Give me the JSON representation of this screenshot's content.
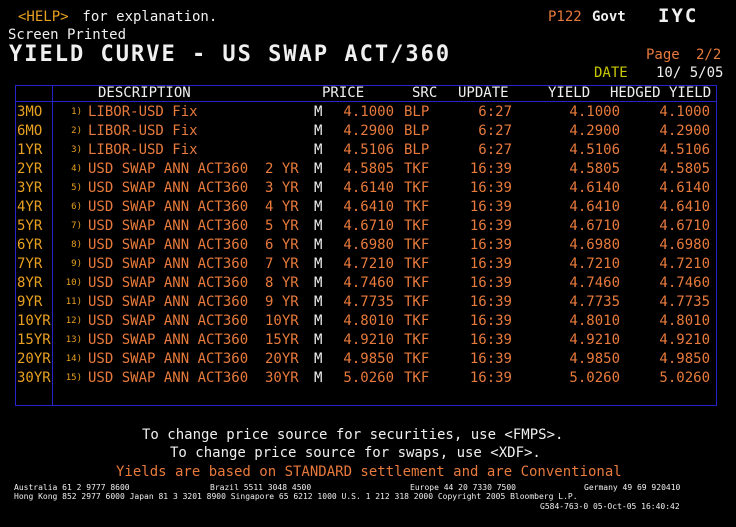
{
  "top": {
    "help_key": "<HELP>",
    "help_text": " for explanation.",
    "page_code": "P122",
    "market": "Govt",
    "function": "IYC",
    "status": "Screen Printed",
    "title": "YIELD CURVE - US SWAP ACT/360",
    "page_label": "Page",
    "page_value": "2/2",
    "date_label": "DATE",
    "date_value": "10/ 5/05"
  },
  "columns": {
    "description": "DESCRIPTION",
    "price": "PRICE",
    "src": "SRC",
    "update": "UPDATE",
    "yield": "YIELD",
    "hedged_yield": "HEDGED YIELD"
  },
  "rows": [
    {
      "tenor": "3MO",
      "num": "1)",
      "desc": "LIBOR-USD Fix",
      "ind": "M",
      "price": "4.1000",
      "src": "BLP",
      "update": "6:27",
      "yield": "4.1000",
      "hedged": "4.1000"
    },
    {
      "tenor": "6MO",
      "num": "2)",
      "desc": "LIBOR-USD Fix",
      "ind": "M",
      "price": "4.2900",
      "src": "BLP",
      "update": "6:27",
      "yield": "4.2900",
      "hedged": "4.2900"
    },
    {
      "tenor": "1YR",
      "num": "3)",
      "desc": "LIBOR-USD Fix",
      "ind": "M",
      "price": "4.5106",
      "src": "BLP",
      "update": "6:27",
      "yield": "4.5106",
      "hedged": "4.5106"
    },
    {
      "tenor": "2YR",
      "num": "4)",
      "desc": "USD SWAP ANN ACT360  2 YR",
      "ind": "M",
      "price": "4.5805",
      "src": "TKF",
      "update": "16:39",
      "yield": "4.5805",
      "hedged": "4.5805"
    },
    {
      "tenor": "3YR",
      "num": "5)",
      "desc": "USD SWAP ANN ACT360  3 YR",
      "ind": "M",
      "price": "4.6140",
      "src": "TKF",
      "update": "16:39",
      "yield": "4.6140",
      "hedged": "4.6140"
    },
    {
      "tenor": "4YR",
      "num": "6)",
      "desc": "USD SWAP ANN ACT360  4 YR",
      "ind": "M",
      "price": "4.6410",
      "src": "TKF",
      "update": "16:39",
      "yield": "4.6410",
      "hedged": "4.6410"
    },
    {
      "tenor": "5YR",
      "num": "7)",
      "desc": "USD SWAP ANN ACT360  5 YR",
      "ind": "M",
      "price": "4.6710",
      "src": "TKF",
      "update": "16:39",
      "yield": "4.6710",
      "hedged": "4.6710"
    },
    {
      "tenor": "6YR",
      "num": "8)",
      "desc": "USD SWAP ANN ACT360  6 YR",
      "ind": "M",
      "price": "4.6980",
      "src": "TKF",
      "update": "16:39",
      "yield": "4.6980",
      "hedged": "4.6980"
    },
    {
      "tenor": "7YR",
      "num": "9)",
      "desc": "USD SWAP ANN ACT360  7 YR",
      "ind": "M",
      "price": "4.7210",
      "src": "TKF",
      "update": "16:39",
      "yield": "4.7210",
      "hedged": "4.7210"
    },
    {
      "tenor": "8YR",
      "num": "10)",
      "desc": "USD SWAP ANN ACT360  8 YR",
      "ind": "M",
      "price": "4.7460",
      "src": "TKF",
      "update": "16:39",
      "yield": "4.7460",
      "hedged": "4.7460"
    },
    {
      "tenor": "9YR",
      "num": "11)",
      "desc": "USD SWAP ANN ACT360  9 YR",
      "ind": "M",
      "price": "4.7735",
      "src": "TKF",
      "update": "16:39",
      "yield": "4.7735",
      "hedged": "4.7735"
    },
    {
      "tenor": "10YR",
      "num": "12)",
      "desc": "USD SWAP ANN ACT360  10YR",
      "ind": "M",
      "price": "4.8010",
      "src": "TKF",
      "update": "16:39",
      "yield": "4.8010",
      "hedged": "4.8010"
    },
    {
      "tenor": "15YR",
      "num": "13)",
      "desc": "USD SWAP ANN ACT360  15YR",
      "ind": "M",
      "price": "4.9210",
      "src": "TKF",
      "update": "16:39",
      "yield": "4.9210",
      "hedged": "4.9210"
    },
    {
      "tenor": "20YR",
      "num": "14)",
      "desc": "USD SWAP ANN ACT360  20YR",
      "ind": "M",
      "price": "4.9850",
      "src": "TKF",
      "update": "16:39",
      "yield": "4.9850",
      "hedged": "4.9850"
    },
    {
      "tenor": "30YR",
      "num": "15)",
      "desc": "USD SWAP ANN ACT360  30YR",
      "ind": "M",
      "price": "5.0260",
      "src": "TKF",
      "update": "16:39",
      "yield": "5.0260",
      "hedged": "5.0260"
    }
  ],
  "notes": {
    "line1": "To change price source for securities, use <FMPS>.",
    "line2": "To change price source for swaps, use <XDF>.",
    "line3": "Yields are based on STANDARD settlement and are Conventional"
  },
  "footer": {
    "contacts1a": "Australia 61 2 9777 8600",
    "contacts1b": "Brazil 5511 3048 4500",
    "contacts1c": "Europe 44 20 7330 7500",
    "contacts1d": "Germany 49 69 920410",
    "contacts2": "Hong Kong 852 2977 6000 Japan 81 3 3201 8900 Singapore 65 6212 1000 U.S. 1 212 318 2000 Copyright 2005 Bloomberg L.P.",
    "stamp": "G584-763-0 05-Oct-05 16:40:42"
  },
  "colors": {
    "background": "#000000",
    "value_text": "#e87a3c",
    "tenor_text": "#e8a020",
    "grid_border": "#2424c8",
    "date_label": "#c8c800"
  }
}
